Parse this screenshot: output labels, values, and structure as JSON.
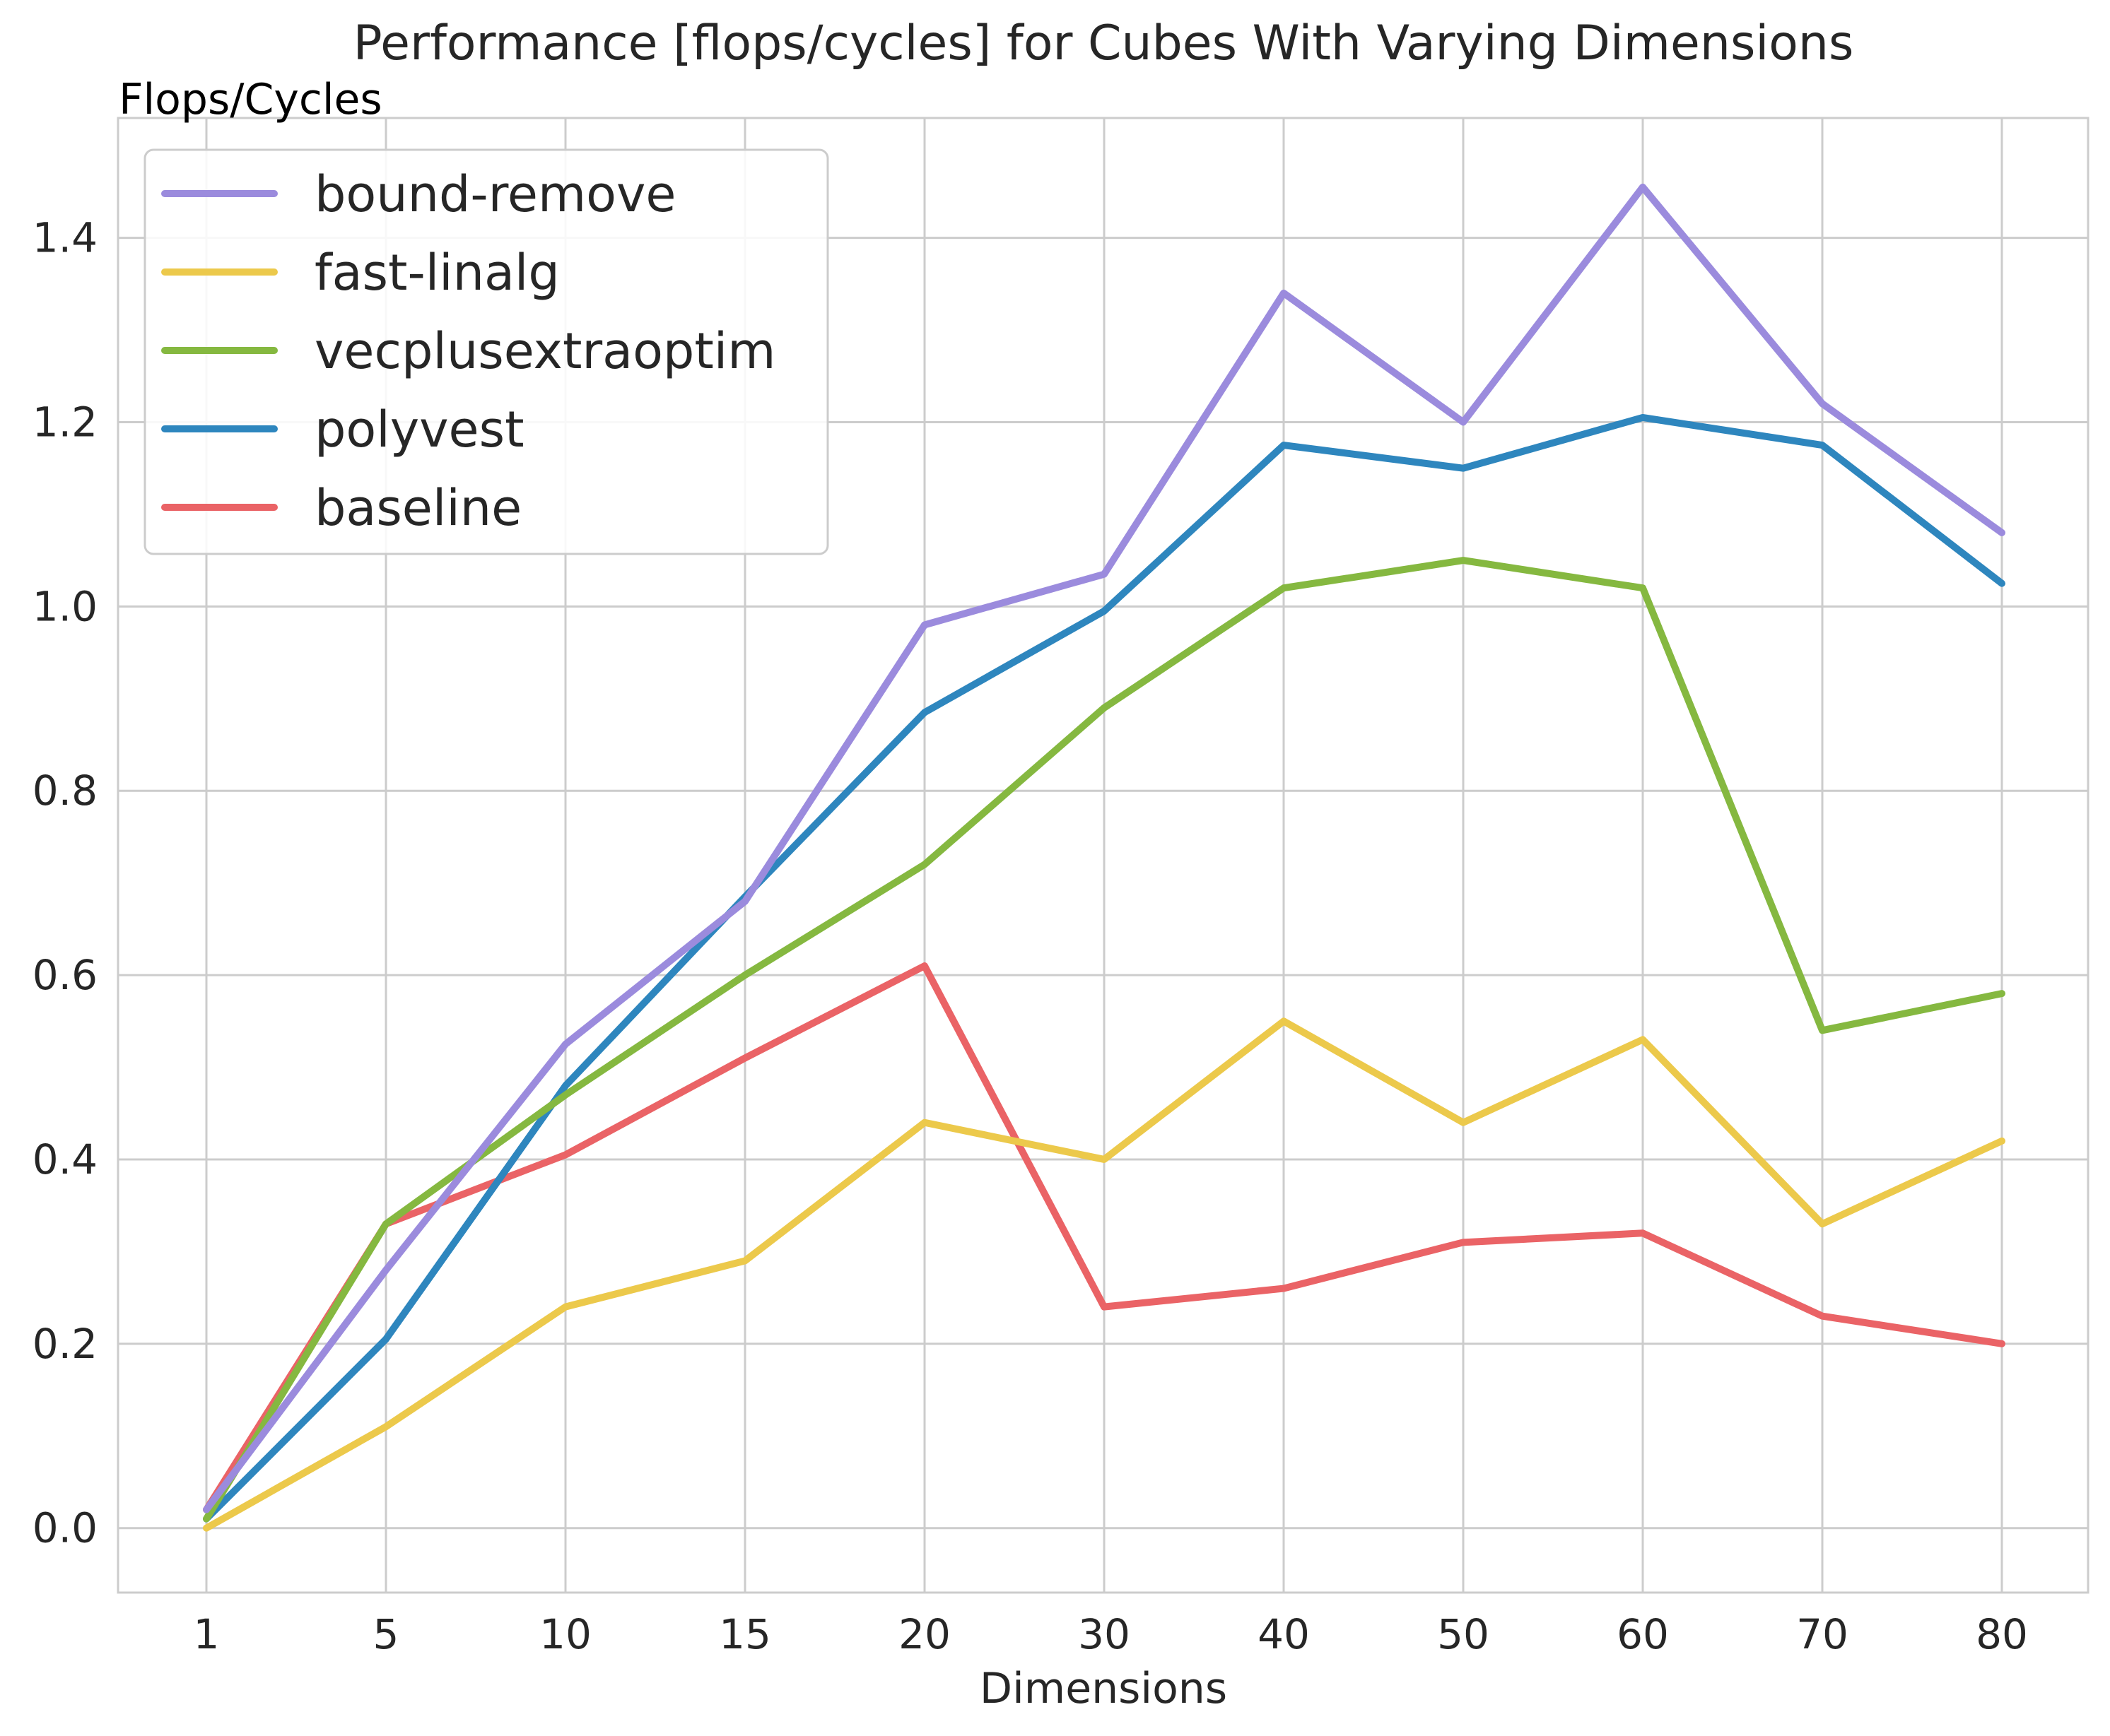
{
  "chart_data": {
    "type": "line",
    "title": "Performance [flops/cycles] for Cubes With Varying Dimensions",
    "ylabel": "Flops/Cycles",
    "xlabel": "Dimensions",
    "categories": [
      "1",
      "5",
      "10",
      "15",
      "20",
      "30",
      "40",
      "50",
      "60",
      "70",
      "80"
    ],
    "ylim": [
      -0.07,
      1.53
    ],
    "yticks": [
      0.0,
      0.2,
      0.4,
      0.6,
      0.8,
      1.0,
      1.2,
      1.4
    ],
    "ytick_labels": [
      "0.0",
      "0.2",
      "0.4",
      "0.6",
      "0.8",
      "1.0",
      "1.2",
      "1.4"
    ],
    "grid": true,
    "legend_position": "top-left",
    "series": [
      {
        "name": "bound-remove",
        "color": "#9b8bdd",
        "values": [
          0.02,
          0.28,
          0.525,
          0.68,
          0.98,
          1.035,
          1.34,
          1.2,
          1.455,
          1.22,
          1.08
        ]
      },
      {
        "name": "fast-linalg",
        "color": "#ecc94b",
        "values": [
          0.0,
          0.11,
          0.24,
          0.29,
          0.44,
          0.4,
          0.55,
          0.44,
          0.53,
          0.33,
          0.42
        ]
      },
      {
        "name": "vecplusextraoptim",
        "color": "#85b840",
        "values": [
          0.01,
          0.33,
          0.47,
          0.6,
          0.72,
          0.89,
          1.02,
          1.05,
          1.02,
          0.54,
          0.58
        ]
      },
      {
        "name": "polyvest",
        "color": "#2e86be",
        "values": [
          0.01,
          0.205,
          0.48,
          0.685,
          0.885,
          0.995,
          1.175,
          1.15,
          1.205,
          1.175,
          1.025
        ]
      },
      {
        "name": "baseline",
        "color": "#ea6366",
        "values": [
          0.02,
          0.33,
          0.405,
          0.51,
          0.61,
          0.24,
          0.26,
          0.31,
          0.32,
          0.23,
          0.2
        ]
      }
    ]
  }
}
